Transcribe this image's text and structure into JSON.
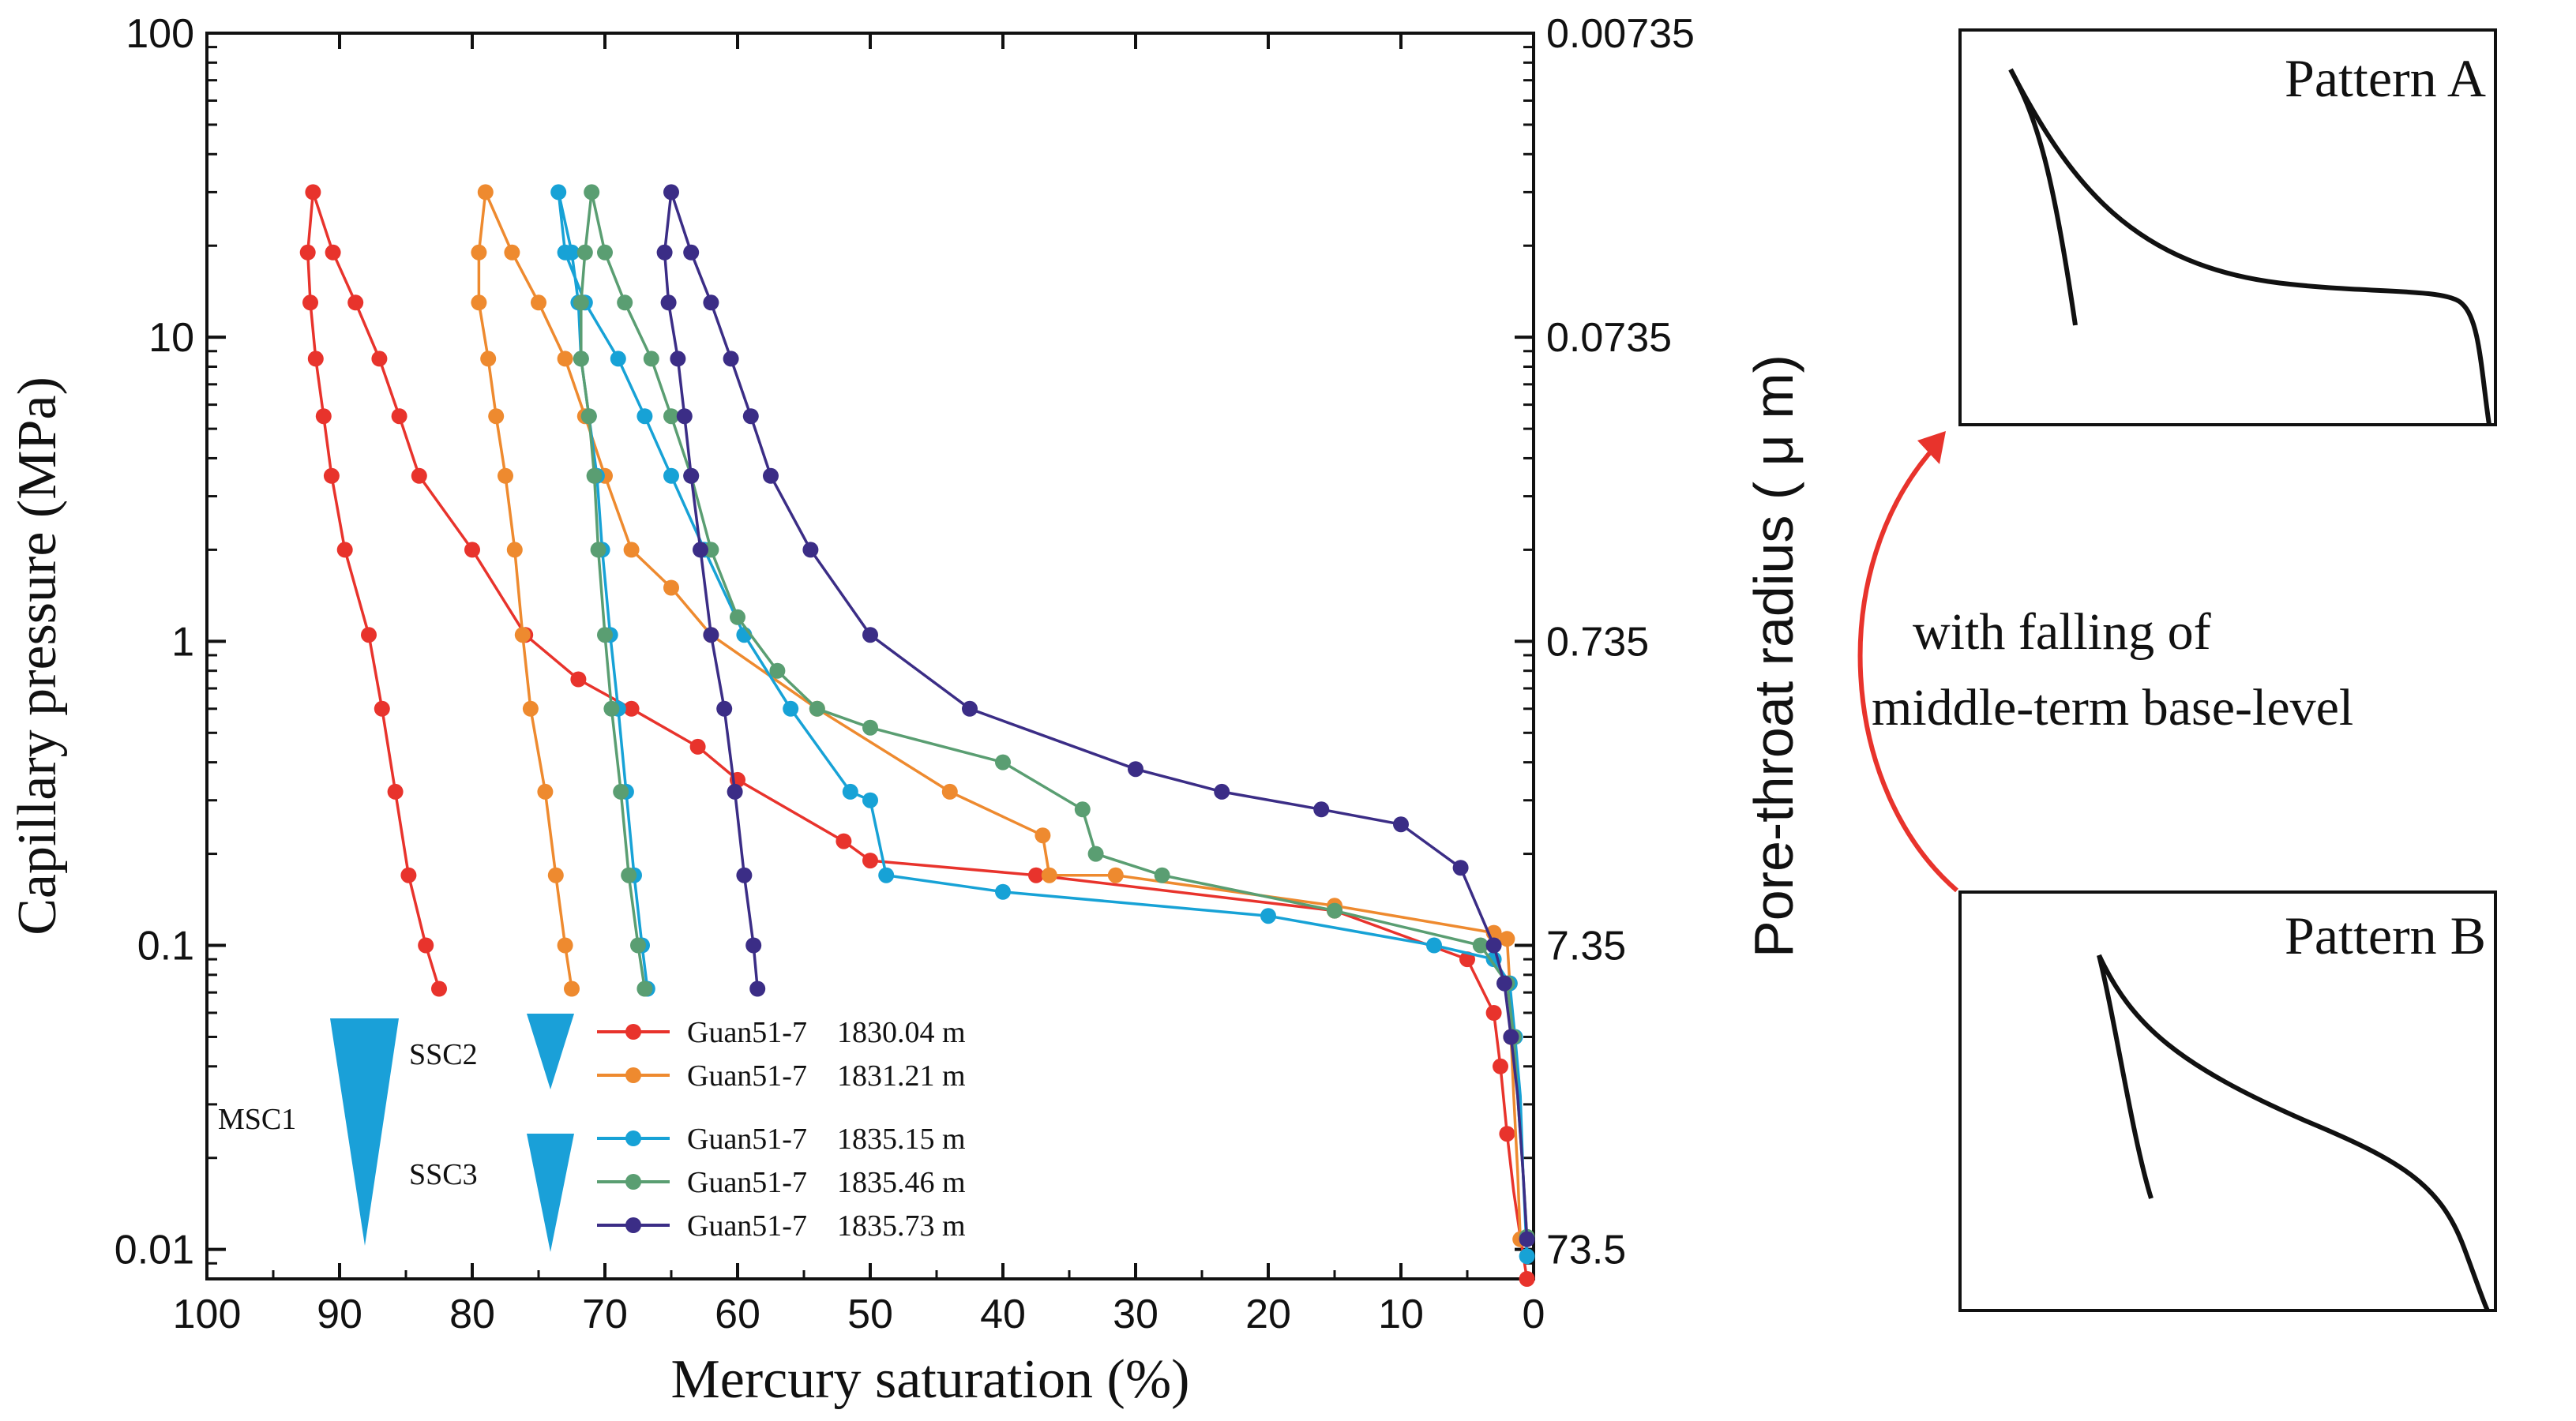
{
  "chart_data": {
    "type": "line",
    "xlabel": "Mercury  saturation (%)",
    "ylabel": "Capillary pressure (MPa)",
    "y2label": "Pore-throat radius ( μ m)",
    "x_reversed": true,
    "xlim": [
      100,
      0
    ],
    "ylim": [
      0.008,
      100
    ],
    "y_scale": "log",
    "x_ticks": [
      "100",
      "90",
      "80",
      "70",
      "60",
      "50",
      "40",
      "30",
      "20",
      "10",
      "0"
    ],
    "y_ticks": [
      "0.01",
      "0.1",
      "1",
      "10",
      "100"
    ],
    "y2_ticks": [
      "73.5",
      "7.35",
      "0.735",
      "0.0735",
      "0.00735"
    ],
    "legend_position": "bottom-left",
    "series": [
      {
        "name": "Guan51-7    1830.04 m",
        "color": "#e8332c",
        "points": [
          [
            0.5,
            0.008
          ],
          [
            1,
            0.011
          ],
          [
            1.5,
            0.0155
          ],
          [
            2,
            0.024
          ],
          [
            2.5,
            0.04
          ],
          [
            3,
            0.06
          ],
          [
            5,
            0.09
          ],
          [
            15,
            0.13
          ],
          [
            37.5,
            0.17
          ],
          [
            50,
            0.19
          ],
          [
            52,
            0.22
          ],
          [
            60,
            0.35
          ],
          [
            63,
            0.45
          ],
          [
            68,
            0.6
          ],
          [
            72,
            0.75
          ],
          [
            76,
            1.05
          ],
          [
            80,
            2
          ],
          [
            84,
            3.5
          ],
          [
            85.5,
            5.5
          ],
          [
            87,
            8.5
          ],
          [
            88.8,
            13
          ],
          [
            90.5,
            19
          ],
          [
            92,
            30
          ],
          [
            92.4,
            19
          ],
          [
            92.2,
            13
          ],
          [
            91.8,
            8.5
          ],
          [
            91.2,
            5.5
          ],
          [
            90.6,
            3.5
          ],
          [
            89.6,
            2
          ],
          [
            87.8,
            1.05
          ],
          [
            86.8,
            0.6
          ],
          [
            85.8,
            0.32
          ],
          [
            84.8,
            0.17
          ],
          [
            83.5,
            0.1
          ],
          [
            82.5,
            0.072
          ]
        ]
      },
      {
        "name": "Guan51-7    1831.21 m",
        "color": "#ee8a2f",
        "points": [
          [
            1,
            0.0108
          ],
          [
            1.2,
            0.018
          ],
          [
            1.5,
            0.032
          ],
          [
            1.7,
            0.05
          ],
          [
            1.8,
            0.075
          ],
          [
            2,
            0.105
          ],
          [
            3,
            0.11
          ],
          [
            15,
            0.135
          ],
          [
            31.5,
            0.17
          ],
          [
            36.5,
            0.17
          ],
          [
            37,
            0.23
          ],
          [
            44,
            0.32
          ],
          [
            54,
            0.6
          ],
          [
            62,
            1.05
          ],
          [
            65,
            1.5
          ],
          [
            68,
            2
          ],
          [
            70,
            3.5
          ],
          [
            71.5,
            5.5
          ],
          [
            73,
            8.5
          ],
          [
            75,
            13
          ],
          [
            77,
            19
          ],
          [
            79,
            30
          ],
          [
            79.5,
            19
          ],
          [
            79.5,
            13
          ],
          [
            78.8,
            8.5
          ],
          [
            78.2,
            5.5
          ],
          [
            77.5,
            3.5
          ],
          [
            76.8,
            2
          ],
          [
            76.2,
            1.05
          ],
          [
            75.6,
            0.6
          ],
          [
            74.5,
            0.32
          ],
          [
            73.7,
            0.17
          ],
          [
            73,
            0.1
          ],
          [
            72.5,
            0.072
          ]
        ]
      },
      {
        "name": "Guan51-7    1835.15 m",
        "color": "#17a2d6",
        "points": [
          [
            0.5,
            0.0095
          ],
          [
            0.8,
            0.018
          ],
          [
            1,
            0.032
          ],
          [
            1.4,
            0.05
          ],
          [
            1.8,
            0.075
          ],
          [
            3,
            0.09
          ],
          [
            7.5,
            0.1
          ],
          [
            20,
            0.125
          ],
          [
            40,
            0.15
          ],
          [
            48.8,
            0.17
          ],
          [
            50,
            0.3
          ],
          [
            51.5,
            0.32
          ],
          [
            56,
            0.6
          ],
          [
            59.5,
            1.05
          ],
          [
            62.5,
            2
          ],
          [
            65,
            3.5
          ],
          [
            67,
            5.5
          ],
          [
            69,
            8.5
          ],
          [
            71.5,
            13
          ],
          [
            73,
            19
          ],
          [
            73.5,
            30
          ],
          [
            72.5,
            19
          ],
          [
            72,
            13
          ],
          [
            71.8,
            8.5
          ],
          [
            71.2,
            5.5
          ],
          [
            70.6,
            3.5
          ],
          [
            70.2,
            2
          ],
          [
            69.6,
            1.05
          ],
          [
            69,
            0.6
          ],
          [
            68.4,
            0.32
          ],
          [
            67.8,
            0.17
          ],
          [
            67.2,
            0.1
          ],
          [
            66.8,
            0.072
          ]
        ]
      },
      {
        "name": "Guan51-7    1835.46 m",
        "color": "#5a9e72",
        "points": [
          [
            0.5,
            0.011
          ],
          [
            0.8,
            0.018
          ],
          [
            1.2,
            0.032
          ],
          [
            1.5,
            0.05
          ],
          [
            2,
            0.075
          ],
          [
            4,
            0.1
          ],
          [
            15,
            0.13
          ],
          [
            28,
            0.17
          ],
          [
            33,
            0.2
          ],
          [
            34,
            0.28
          ],
          [
            40,
            0.4
          ],
          [
            50,
            0.52
          ],
          [
            54,
            0.6
          ],
          [
            57,
            0.8
          ],
          [
            60,
            1.2
          ],
          [
            62,
            2
          ],
          [
            63.5,
            3.5
          ],
          [
            65,
            5.5
          ],
          [
            66.5,
            8.5
          ],
          [
            68.5,
            13
          ],
          [
            70,
            19
          ],
          [
            71,
            30
          ],
          [
            71.5,
            19
          ],
          [
            71.8,
            13
          ],
          [
            71.8,
            8.5
          ],
          [
            71.2,
            5.5
          ],
          [
            70.8,
            3.5
          ],
          [
            70.5,
            2
          ],
          [
            70,
            1.05
          ],
          [
            69.5,
            0.6
          ],
          [
            68.8,
            0.32
          ],
          [
            68.2,
            0.17
          ],
          [
            67.5,
            0.1
          ],
          [
            67,
            0.072
          ]
        ]
      },
      {
        "name": "Guan51-7    1835.73 m",
        "color": "#3b2d86",
        "points": [
          [
            0.5,
            0.0108
          ],
          [
            0.8,
            0.018
          ],
          [
            1.2,
            0.032
          ],
          [
            1.7,
            0.05
          ],
          [
            2.2,
            0.075
          ],
          [
            3,
            0.1
          ],
          [
            5.5,
            0.18
          ],
          [
            10,
            0.25
          ],
          [
            16,
            0.28
          ],
          [
            23.5,
            0.32
          ],
          [
            30,
            0.38
          ],
          [
            42.5,
            0.6
          ],
          [
            50,
            1.05
          ],
          [
            54.5,
            2
          ],
          [
            57.5,
            3.5
          ],
          [
            59,
            5.5
          ],
          [
            60.5,
            8.5
          ],
          [
            62,
            13
          ],
          [
            63.5,
            19
          ],
          [
            65,
            30
          ],
          [
            65.5,
            19
          ],
          [
            65.2,
            13
          ],
          [
            64.5,
            8.5
          ],
          [
            64,
            5.5
          ],
          [
            63.5,
            3.5
          ],
          [
            62.8,
            2
          ],
          [
            62,
            1.05
          ],
          [
            61,
            0.6
          ],
          [
            60.2,
            0.32
          ],
          [
            59.5,
            0.17
          ],
          [
            58.8,
            0.1
          ],
          [
            58.5,
            0.072
          ]
        ]
      }
    ],
    "annotations": {
      "msc1": "MSC1",
      "ssc2": "SSC2",
      "ssc3": "SSC3",
      "arrow_caption_line1": "with falling of",
      "arrow_caption_line2": "middle-term base-level"
    }
  },
  "patterns": {
    "a_title": "Pattern A",
    "b_title": "Pattern B"
  },
  "colors": {
    "triangle": "#1aa0d8",
    "arrow": "#e8332c",
    "curve": "#111111"
  }
}
